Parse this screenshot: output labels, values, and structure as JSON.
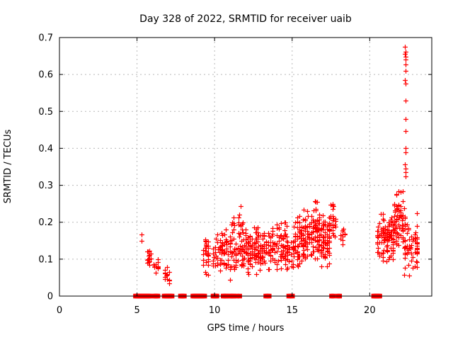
{
  "chart_data": {
    "type": "scatter",
    "title": "Day 328 of 2022, SRMTID for receiver uaib",
    "xlabel": "GPS time / hours",
    "ylabel": "SRMTID / TECUs",
    "xlim": [
      0,
      24
    ],
    "ylim": [
      0,
      0.7
    ],
    "x_ticks": [
      0,
      5,
      10,
      15,
      20
    ],
    "y_ticks": [
      0,
      0.1,
      0.2,
      0.3,
      0.4,
      0.5,
      0.6,
      0.7
    ],
    "grid": "dashed",
    "legend": "none",
    "marker_color": "#ff0000",
    "grid_color": "#b8b8b8",
    "axis_color": "#000000",
    "series": [
      {
        "name": "srmtid-values",
        "marker": "plus",
        "points": [
          [
            5.28,
            0.167
          ],
          [
            5.3,
            0.15
          ],
          [
            22.28,
            0.675
          ],
          [
            22.3,
            0.662
          ],
          [
            22.26,
            0.655
          ],
          [
            22.3,
            0.648
          ],
          [
            22.29,
            0.64
          ],
          [
            22.31,
            0.628
          ],
          [
            22.3,
            0.61
          ],
          [
            22.28,
            0.585
          ],
          [
            22.3,
            0.575
          ],
          [
            22.29,
            0.53
          ],
          [
            22.3,
            0.48
          ],
          [
            22.31,
            0.447
          ],
          [
            22.29,
            0.4
          ],
          [
            22.3,
            0.39
          ],
          [
            22.28,
            0.357
          ],
          [
            22.3,
            0.345
          ],
          [
            22.31,
            0.335
          ],
          [
            22.3,
            0.325
          ]
        ],
        "clusters": [
          {
            "x0": 5.62,
            "x1": 5.95,
            "y0": 0.075,
            "y1": 0.135,
            "n": 14
          },
          {
            "x0": 6.05,
            "x1": 6.4,
            "y0": 0.062,
            "y1": 0.1,
            "n": 11
          },
          {
            "x0": 6.72,
            "x1": 7.15,
            "y0": 0.015,
            "y1": 0.095,
            "n": 14
          },
          {
            "x0": 9.2,
            "x1": 9.65,
            "y0": 0.04,
            "y1": 0.175,
            "n": 32
          },
          {
            "x0": 9.85,
            "x1": 10.55,
            "y0": 0.05,
            "y1": 0.2,
            "n": 42
          },
          {
            "x0": 10.55,
            "x1": 11.3,
            "y0": 0.04,
            "y1": 0.22,
            "n": 48
          },
          {
            "x0": 11.5,
            "x1": 11.85,
            "y0": 0.155,
            "y1": 0.25,
            "n": 12
          },
          {
            "x0": 11.3,
            "x1": 12.6,
            "y0": 0.05,
            "y1": 0.19,
            "n": 95
          },
          {
            "x0": 12.6,
            "x1": 14.2,
            "y0": 0.055,
            "y1": 0.205,
            "n": 115
          },
          {
            "x0": 14.2,
            "x1": 15.4,
            "y0": 0.05,
            "y1": 0.225,
            "n": 95
          },
          {
            "x0": 15.4,
            "x1": 16.3,
            "y0": 0.075,
            "y1": 0.24,
            "n": 85
          },
          {
            "x0": 16.3,
            "x1": 16.8,
            "y0": 0.09,
            "y1": 0.28,
            "n": 55
          },
          {
            "x0": 16.8,
            "x1": 17.45,
            "y0": 0.065,
            "y1": 0.23,
            "n": 70
          },
          {
            "x0": 17.4,
            "x1": 17.85,
            "y0": 0.14,
            "y1": 0.27,
            "n": 22
          },
          {
            "x0": 17.95,
            "x1": 18.45,
            "y0": 0.13,
            "y1": 0.22,
            "n": 12
          },
          {
            "x0": 20.45,
            "x1": 21.05,
            "y0": 0.085,
            "y1": 0.25,
            "n": 48
          },
          {
            "x0": 21.05,
            "x1": 21.55,
            "y0": 0.08,
            "y1": 0.22,
            "n": 55
          },
          {
            "x0": 21.55,
            "x1": 22.3,
            "y0": 0.1,
            "y1": 0.31,
            "n": 75
          },
          {
            "x0": 22.2,
            "x1": 23.1,
            "y0": 0.05,
            "y1": 0.225,
            "n": 65
          }
        ]
      },
      {
        "name": "zero-flags",
        "marker": "filled-square",
        "y": 0,
        "segments": [
          {
            "x0": 4.9,
            "x1": 5.85
          },
          {
            "x0": 6.1,
            "x1": 6.35
          },
          {
            "x0": 6.75,
            "x1": 7.1
          },
          {
            "x0": 7.17,
            "x1": 7.26
          },
          {
            "x0": 7.8,
            "x1": 8.05
          },
          {
            "x0": 8.6,
            "x1": 9.15
          },
          {
            "x0": 9.27,
            "x1": 9.36
          },
          {
            "x0": 9.9,
            "x1": 10.15
          },
          {
            "x0": 10.55,
            "x1": 10.8
          },
          {
            "x0": 10.97,
            "x1": 11.08
          },
          {
            "x0": 11.17,
            "x1": 11.26
          },
          {
            "x0": 11.45,
            "x1": 11.62
          },
          {
            "x0": 13.3,
            "x1": 13.52
          },
          {
            "x0": 14.78,
            "x1": 15.02
          },
          {
            "x0": 17.54,
            "x1": 17.66
          },
          {
            "x0": 17.95,
            "x1": 18.06
          },
          {
            "x0": 20.25,
            "x1": 20.65
          }
        ]
      }
    ]
  }
}
